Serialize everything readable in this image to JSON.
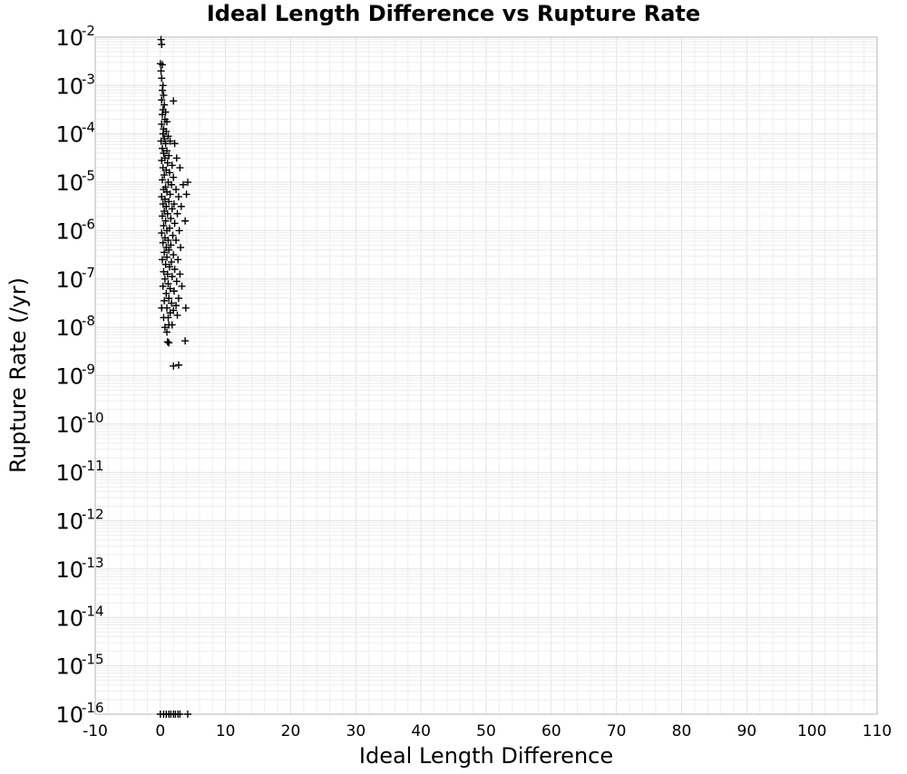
{
  "chart_data": {
    "type": "scatter",
    "title": "Ideal Length Difference vs Rupture Rate",
    "xlabel": "Ideal Length Difference",
    "ylabel": "Rupture Rate (/yr)",
    "xlim": [
      -10,
      110
    ],
    "xticks": [
      -10,
      0,
      10,
      20,
      30,
      40,
      50,
      60,
      70,
      80,
      90,
      100,
      110
    ],
    "ylim_log10": [
      -16,
      -2
    ],
    "y_scale": "log",
    "ytick_base": "10",
    "ytick_exponents": [
      -2,
      -3,
      -4,
      -5,
      -6,
      -7,
      -8,
      -9,
      -10,
      -11,
      -12,
      -13,
      -14,
      -15,
      -16
    ],
    "grid": true,
    "legend": "none",
    "marker": "+",
    "marker_color": "#000000",
    "points_log10_y": [
      [
        0.1,
        -2.05
      ],
      [
        0.2,
        -2.15
      ],
      [
        0.0,
        -2.55
      ],
      [
        0.3,
        -2.57
      ],
      [
        0.1,
        -2.7
      ],
      [
        0.2,
        -2.85
      ],
      [
        0.4,
        -3.0
      ],
      [
        0.3,
        -3.1
      ],
      [
        0.5,
        -3.2
      ],
      [
        0.2,
        -3.3
      ],
      [
        0.6,
        -3.4
      ],
      [
        2.0,
        -3.32
      ],
      [
        0.4,
        -3.5
      ],
      [
        0.8,
        -3.55
      ],
      [
        0.3,
        -3.6
      ],
      [
        0.7,
        -3.7
      ],
      [
        1.0,
        -3.75
      ],
      [
        0.2,
        -3.8
      ],
      [
        0.5,
        -3.9
      ],
      [
        0.9,
        -3.95
      ],
      [
        0.4,
        -4.0
      ],
      [
        1.2,
        -4.05
      ],
      [
        0.6,
        -4.1
      ],
      [
        0.1,
        -4.15
      ],
      [
        0.8,
        -4.2
      ],
      [
        1.5,
        -4.15
      ],
      [
        0.3,
        -4.3
      ],
      [
        1.0,
        -4.35
      ],
      [
        2.2,
        -4.2
      ],
      [
        0.5,
        -4.4
      ],
      [
        1.3,
        -4.45
      ],
      [
        0.7,
        -4.5
      ],
      [
        2.5,
        -4.5
      ],
      [
        0.2,
        -4.55
      ],
      [
        1.1,
        -4.6
      ],
      [
        1.8,
        -4.65
      ],
      [
        0.4,
        -4.7
      ],
      [
        0.9,
        -4.75
      ],
      [
        3.0,
        -4.7
      ],
      [
        1.4,
        -4.8
      ],
      [
        0.6,
        -4.85
      ],
      [
        2.0,
        -4.9
      ],
      [
        0.3,
        -4.95
      ],
      [
        1.2,
        -5.0
      ],
      [
        1.7,
        -5.05
      ],
      [
        0.8,
        -5.1
      ],
      [
        3.5,
        -5.05
      ],
      [
        4.2,
        -5.0
      ],
      [
        0.5,
        -5.15
      ],
      [
        2.4,
        -5.15
      ],
      [
        1.0,
        -5.2
      ],
      [
        1.5,
        -5.25
      ],
      [
        0.2,
        -5.3
      ],
      [
        2.8,
        -5.3
      ],
      [
        0.7,
        -5.35
      ],
      [
        4.0,
        -5.25
      ],
      [
        1.3,
        -5.4
      ],
      [
        0.4,
        -5.45
      ],
      [
        2.1,
        -5.45
      ],
      [
        0.9,
        -5.5
      ],
      [
        1.8,
        -5.55
      ],
      [
        3.2,
        -5.5
      ],
      [
        0.6,
        -5.6
      ],
      [
        1.1,
        -5.65
      ],
      [
        2.6,
        -5.65
      ],
      [
        0.3,
        -5.7
      ],
      [
        1.6,
        -5.75
      ],
      [
        0.8,
        -5.8
      ],
      [
        2.2,
        -5.85
      ],
      [
        3.8,
        -5.8
      ],
      [
        0.5,
        -5.9
      ],
      [
        1.4,
        -5.95
      ],
      [
        1.0,
        -6.0
      ],
      [
        2.9,
        -6.0
      ],
      [
        0.2,
        -6.05
      ],
      [
        1.9,
        -6.1
      ],
      [
        0.7,
        -6.15
      ],
      [
        1.2,
        -6.2
      ],
      [
        2.4,
        -6.2
      ],
      [
        0.4,
        -6.25
      ],
      [
        1.6,
        -6.3
      ],
      [
        0.9,
        -6.35
      ],
      [
        3.1,
        -6.35
      ],
      [
        1.3,
        -6.4
      ],
      [
        0.6,
        -6.45
      ],
      [
        2.0,
        -6.5
      ],
      [
        1.0,
        -6.55
      ],
      [
        0.3,
        -6.6
      ],
      [
        1.7,
        -6.65
      ],
      [
        2.7,
        -6.6
      ],
      [
        0.8,
        -6.7
      ],
      [
        1.4,
        -6.75
      ],
      [
        2.2,
        -6.8
      ],
      [
        0.5,
        -6.85
      ],
      [
        1.1,
        -6.9
      ],
      [
        3.0,
        -6.9
      ],
      [
        1.8,
        -6.95
      ],
      [
        0.7,
        -7.0
      ],
      [
        2.5,
        -7.05
      ],
      [
        1.2,
        -7.1
      ],
      [
        0.4,
        -7.15
      ],
      [
        3.3,
        -7.15
      ],
      [
        1.5,
        -7.2
      ],
      [
        2.1,
        -7.25
      ],
      [
        0.9,
        -7.3
      ],
      [
        1.3,
        -7.4
      ],
      [
        2.8,
        -7.4
      ],
      [
        0.6,
        -7.45
      ],
      [
        1.7,
        -7.5
      ],
      [
        2.4,
        -7.55
      ],
      [
        1.0,
        -7.6
      ],
      [
        2.0,
        -7.65
      ],
      [
        1.5,
        -7.7
      ],
      [
        3.9,
        -7.6
      ],
      [
        0.2,
        -7.6
      ],
      [
        2.6,
        -7.75
      ],
      [
        1.2,
        -7.8
      ],
      [
        0.5,
        -7.8
      ],
      [
        1.8,
        -7.95
      ],
      [
        0.7,
        -8.0
      ],
      [
        1.3,
        -7.95
      ],
      [
        1.0,
        -8.1
      ],
      [
        1.1,
        -8.3
      ],
      [
        3.8,
        -8.28
      ],
      [
        1.3,
        -8.32
      ],
      [
        2.0,
        -8.8
      ],
      [
        2.8,
        -8.78
      ],
      [
        0.0,
        -16
      ],
      [
        0.5,
        -16
      ],
      [
        0.9,
        -16
      ],
      [
        1.3,
        -16
      ],
      [
        1.6,
        -16
      ],
      [
        2.0,
        -16
      ],
      [
        2.3,
        -16
      ],
      [
        2.7,
        -16
      ],
      [
        3.0,
        -16
      ],
      [
        4.2,
        -16
      ]
    ]
  }
}
